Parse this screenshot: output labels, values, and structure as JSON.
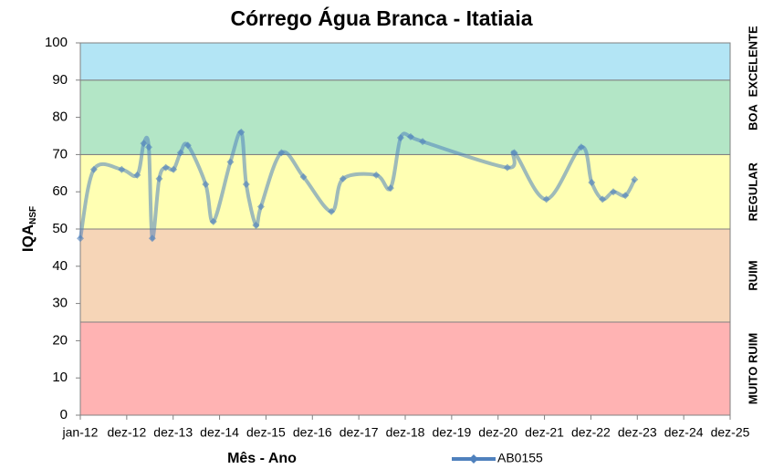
{
  "chart_data": {
    "type": "line",
    "title": "Córrego Água Branca - Itatiaia",
    "x_label": "Mês - Ano",
    "y_label": "IQA",
    "y_label_sub": "NSF",
    "xlim": [
      0,
      156
    ],
    "xticks": [
      {
        "value": 0,
        "label": "jan-12"
      },
      {
        "value": 12,
        "label": "dez-12"
      },
      {
        "value": 24,
        "label": "dez-13"
      },
      {
        "value": 36,
        "label": "dez-14"
      },
      {
        "value": 48,
        "label": "dez-15"
      },
      {
        "value": 60,
        "label": "dez-16"
      },
      {
        "value": 72,
        "label": "dez-17"
      },
      {
        "value": 84,
        "label": "dez-18"
      },
      {
        "value": 96,
        "label": "dez-19"
      },
      {
        "value": 108,
        "label": "dez-20"
      },
      {
        "value": 120,
        "label": "dez-21"
      },
      {
        "value": 132,
        "label": "dez-22"
      },
      {
        "value": 144,
        "label": "dez-23"
      },
      {
        "value": 156,
        "label": "dez-24"
      },
      {
        "value": 168,
        "label": "dez-25"
      }
    ],
    "ylim": [
      0,
      100
    ],
    "yticks": [
      0,
      10,
      20,
      30,
      40,
      50,
      60,
      70,
      80,
      90,
      100
    ],
    "grid": false,
    "legend": "bottom",
    "bands": [
      {
        "from": 0,
        "to": 25,
        "label": "MUITO RUIM",
        "color": "#ffb3b3"
      },
      {
        "from": 25,
        "to": 50,
        "label": "RUIM",
        "color": "#f6d5b7"
      },
      {
        "from": 50,
        "to": 70,
        "label": "REGULAR",
        "color": "#ffffb3"
      },
      {
        "from": 70,
        "to": 90,
        "label": "BOA",
        "color": "#b3e6c6"
      },
      {
        "from": 90,
        "to": 100,
        "label": "EXCELENTE",
        "color": "#b3e5f5"
      }
    ],
    "series": [
      {
        "name": "AB0155",
        "color": "#4f81bd",
        "x": [
          0,
          3.5,
          10.7,
          14.7,
          16.4,
          17.7,
          18.6,
          20.4,
          22.1,
          24.1,
          25.9,
          27.8,
          32.4,
          34.4,
          38.8,
          41.6,
          42.9,
          45.4,
          46.7,
          52,
          57.7,
          64.9,
          67.9,
          76.5,
          80.2,
          82.8,
          85.4,
          88.5,
          110.4,
          112.2,
          120.5,
          129.5,
          132.2,
          135,
          137.8,
          140.9,
          143.3
        ],
        "values": [
          47.5,
          66,
          66,
          64.5,
          73,
          72,
          47.5,
          63.5,
          66.5,
          66,
          70.5,
          72.5,
          62,
          52,
          68,
          76,
          62,
          51,
          56,
          70.5,
          64,
          54.7,
          63.5,
          64.5,
          61,
          74.5,
          74.8,
          73.5,
          66.5,
          70.5,
          58,
          72,
          62.5,
          58,
          60,
          59,
          63.3
        ]
      }
    ]
  }
}
